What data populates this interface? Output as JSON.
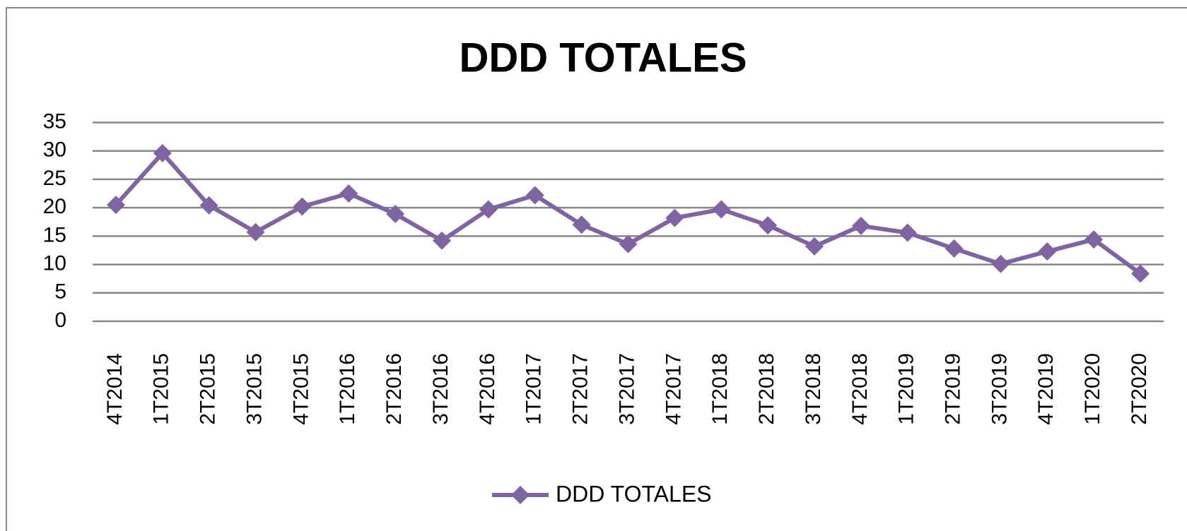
{
  "chart_data": {
    "type": "line",
    "title": "DDD TOTALES",
    "categories": [
      "4T2014",
      "1T2015",
      "2T2015",
      "3T2015",
      "4T2015",
      "1T2016",
      "2T2016",
      "3T2016",
      "4T2016",
      "1T2017",
      "2T2017",
      "3T2017",
      "4T2017",
      "1T2018",
      "2T2018",
      "3T2018",
      "4T2018",
      "1T2019",
      "2T2019",
      "3T2019",
      "4T2019",
      "1T2020",
      "2T2020"
    ],
    "series": [
      {
        "name": "DDD TOTALES",
        "color": "#8064a2",
        "values": [
          20.5,
          29.6,
          20.4,
          15.7,
          20.2,
          22.5,
          18.9,
          14.2,
          19.7,
          22.2,
          17.0,
          13.6,
          18.2,
          19.7,
          16.9,
          13.2,
          16.8,
          15.6,
          12.8,
          10.1,
          12.3,
          14.4,
          8.4
        ]
      }
    ],
    "ylim": [
      0,
      35
    ],
    "yticks": [
      0,
      5,
      10,
      15,
      20,
      25,
      30,
      35
    ],
    "grid": true,
    "legend": "bottom"
  }
}
